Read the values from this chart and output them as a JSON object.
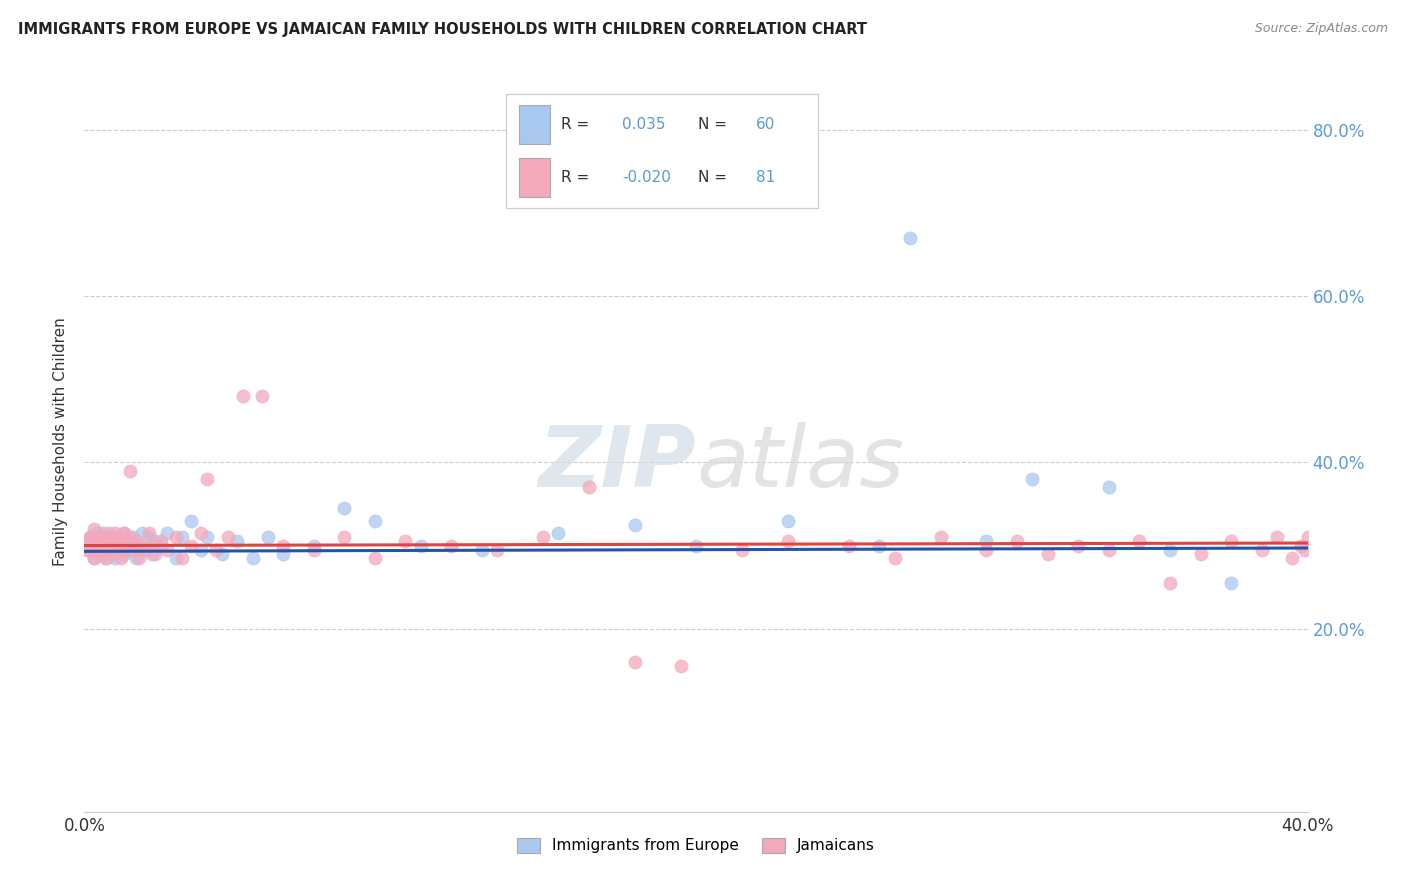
{
  "title": "IMMIGRANTS FROM EUROPE VS JAMAICAN FAMILY HOUSEHOLDS WITH CHILDREN CORRELATION CHART",
  "source": "Source: ZipAtlas.com",
  "ylabel": "Family Households with Children",
  "xlim": [
    0.0,
    0.4
  ],
  "ylim": [
    -0.02,
    0.87
  ],
  "y_ticks": [
    0.2,
    0.4,
    0.6,
    0.8
  ],
  "y_tick_labels": [
    "20.0%",
    "40.0%",
    "60.0%",
    "80.0%"
  ],
  "x_ticks": [
    0.0,
    0.1,
    0.2,
    0.3,
    0.4
  ],
  "x_tick_labels": [
    "0.0%",
    "",
    "",
    "",
    "40.0%"
  ],
  "color_blue": "#A8C8F0",
  "color_pink": "#F4A8BC",
  "color_blue_line": "#2255AA",
  "color_pink_line": "#DD4444",
  "watermark_zip": "ZIP",
  "watermark_atlas": "atlas",
  "background_color": "#FFFFFF",
  "grid_color": "#CCCCCC",
  "tick_color": "#5B9BD5",
  "blue_x": [
    0.001,
    0.002,
    0.002,
    0.003,
    0.003,
    0.004,
    0.004,
    0.005,
    0.005,
    0.006,
    0.006,
    0.007,
    0.007,
    0.008,
    0.008,
    0.009,
    0.01,
    0.01,
    0.011,
    0.012,
    0.013,
    0.013,
    0.014,
    0.015,
    0.016,
    0.017,
    0.018,
    0.019,
    0.02,
    0.021,
    0.022,
    0.023,
    0.025,
    0.027,
    0.03,
    0.032,
    0.035,
    0.038,
    0.04,
    0.045,
    0.05,
    0.055,
    0.06,
    0.065,
    0.075,
    0.085,
    0.095,
    0.11,
    0.13,
    0.155,
    0.18,
    0.2,
    0.23,
    0.26,
    0.27,
    0.295,
    0.31,
    0.335,
    0.355,
    0.375
  ],
  "blue_y": [
    0.305,
    0.295,
    0.31,
    0.285,
    0.3,
    0.315,
    0.295,
    0.305,
    0.29,
    0.31,
    0.295,
    0.305,
    0.285,
    0.3,
    0.315,
    0.295,
    0.31,
    0.285,
    0.305,
    0.3,
    0.315,
    0.29,
    0.305,
    0.295,
    0.31,
    0.285,
    0.3,
    0.315,
    0.295,
    0.31,
    0.29,
    0.305,
    0.3,
    0.315,
    0.285,
    0.31,
    0.33,
    0.295,
    0.31,
    0.29,
    0.305,
    0.285,
    0.31,
    0.29,
    0.3,
    0.345,
    0.33,
    0.3,
    0.295,
    0.315,
    0.325,
    0.3,
    0.33,
    0.3,
    0.67,
    0.305,
    0.38,
    0.37,
    0.295,
    0.255
  ],
  "pink_x": [
    0.001,
    0.001,
    0.002,
    0.002,
    0.003,
    0.003,
    0.003,
    0.004,
    0.004,
    0.005,
    0.005,
    0.006,
    0.006,
    0.006,
    0.007,
    0.007,
    0.008,
    0.008,
    0.009,
    0.009,
    0.01,
    0.01,
    0.011,
    0.011,
    0.012,
    0.012,
    0.013,
    0.013,
    0.014,
    0.015,
    0.015,
    0.016,
    0.017,
    0.018,
    0.019,
    0.02,
    0.021,
    0.022,
    0.023,
    0.025,
    0.027,
    0.03,
    0.032,
    0.035,
    0.038,
    0.04,
    0.043,
    0.047,
    0.052,
    0.058,
    0.065,
    0.075,
    0.085,
    0.095,
    0.105,
    0.12,
    0.135,
    0.15,
    0.165,
    0.18,
    0.195,
    0.215,
    0.23,
    0.25,
    0.265,
    0.28,
    0.295,
    0.305,
    0.315,
    0.325,
    0.335,
    0.345,
    0.355,
    0.365,
    0.375,
    0.385,
    0.39,
    0.395,
    0.398,
    0.399,
    0.4
  ],
  "pink_y": [
    0.305,
    0.295,
    0.31,
    0.295,
    0.285,
    0.305,
    0.32,
    0.3,
    0.295,
    0.31,
    0.29,
    0.305,
    0.295,
    0.315,
    0.3,
    0.285,
    0.31,
    0.295,
    0.305,
    0.29,
    0.315,
    0.3,
    0.295,
    0.31,
    0.305,
    0.285,
    0.315,
    0.295,
    0.3,
    0.31,
    0.39,
    0.295,
    0.305,
    0.285,
    0.3,
    0.295,
    0.315,
    0.3,
    0.29,
    0.305,
    0.295,
    0.31,
    0.285,
    0.3,
    0.315,
    0.38,
    0.295,
    0.31,
    0.48,
    0.48,
    0.3,
    0.295,
    0.31,
    0.285,
    0.305,
    0.3,
    0.295,
    0.31,
    0.37,
    0.16,
    0.155,
    0.295,
    0.305,
    0.3,
    0.285,
    0.31,
    0.295,
    0.305,
    0.29,
    0.3,
    0.295,
    0.305,
    0.255,
    0.29,
    0.305,
    0.295,
    0.31,
    0.285,
    0.3,
    0.295,
    0.31
  ]
}
